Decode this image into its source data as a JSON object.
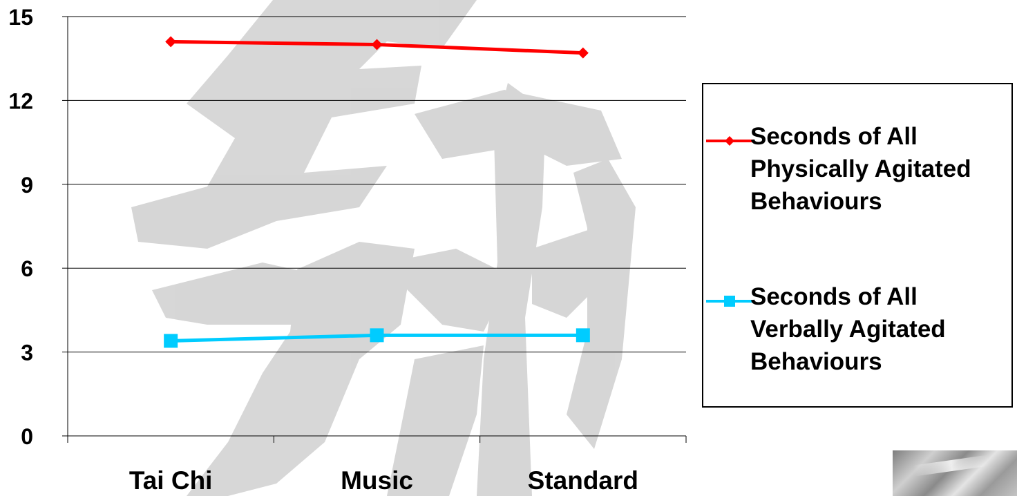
{
  "chart_data": {
    "type": "line",
    "categories": [
      "Tai Chi",
      "Music",
      "Standard"
    ],
    "series": [
      {
        "name": "Seconds of All Physically Agitated Behaviours",
        "values": [
          14.1,
          14.0,
          13.7
        ],
        "color": "#ff0000",
        "marker": "diamond"
      },
      {
        "name": "Seconds of All Verbally Agitated Behaviours",
        "values": [
          3.4,
          3.6,
          3.6
        ],
        "color": "#00ccff",
        "marker": "square"
      }
    ],
    "yticks": [
      "0",
      "3",
      "6",
      "9",
      "12",
      "15"
    ],
    "ylim": [
      0,
      15
    ],
    "grid": true,
    "legend_position": "right"
  },
  "legend": {
    "physical": [
      "Seconds of All",
      "Physically Agitated",
      "Behaviours"
    ],
    "verbal": [
      "Seconds of All",
      "Verbally Agitated",
      "Behaviours"
    ]
  },
  "watermark_icon": "calligraphy-watermark-icon",
  "thumbnail_icon": "photo-thumbnail-icon"
}
